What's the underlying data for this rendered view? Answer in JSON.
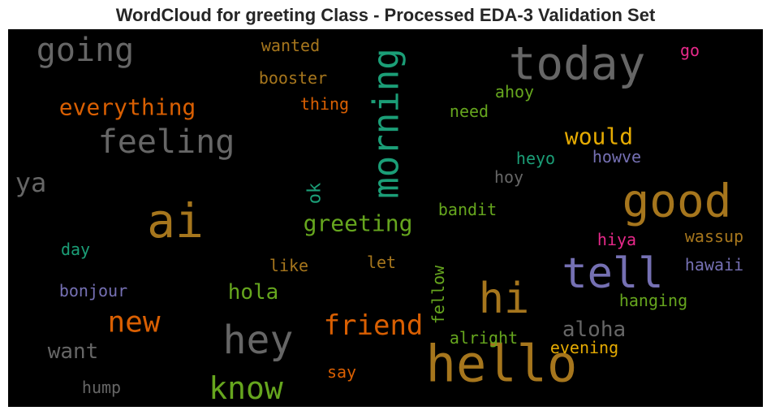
{
  "chart_data": {
    "type": "wordcloud",
    "title": "WordCloud for greeting Class - Processed EDA-3 Validation Set",
    "background": "#000000",
    "words": [
      {
        "text": "hello",
        "size": 62,
        "color": "#a6761d"
      },
      {
        "text": "ai",
        "size": 58,
        "color": "#a6761d"
      },
      {
        "text": "today",
        "size": 56,
        "color": "#666666"
      },
      {
        "text": "good",
        "size": 56,
        "color": "#a6761d"
      },
      {
        "text": "hi",
        "size": 52,
        "color": "#a6761d"
      },
      {
        "text": "tell",
        "size": 52,
        "color": "#7570b3"
      },
      {
        "text": "hey",
        "size": 48,
        "color": "#666666"
      },
      {
        "text": "morning",
        "size": 44,
        "color": "#1b9e77"
      },
      {
        "text": "going",
        "size": 40,
        "color": "#666666"
      },
      {
        "text": "feeling",
        "size": 40,
        "color": "#666666"
      },
      {
        "text": "know",
        "size": 38,
        "color": "#66a61e"
      },
      {
        "text": "new",
        "size": 36,
        "color": "#d95f02"
      },
      {
        "text": "friend",
        "size": 34,
        "color": "#d95f02"
      },
      {
        "text": "ya",
        "size": 32,
        "color": "#666666"
      },
      {
        "text": "everything",
        "size": 28,
        "color": "#d95f02"
      },
      {
        "text": "greeting",
        "size": 28,
        "color": "#66a61e"
      },
      {
        "text": "would",
        "size": 28,
        "color": "#e6ab02"
      },
      {
        "text": "aloha",
        "size": 26,
        "color": "#666666"
      },
      {
        "text": "want",
        "size": 26,
        "color": "#666666"
      },
      {
        "text": "hola",
        "size": 26,
        "color": "#66a61e"
      },
      {
        "text": "ok",
        "size": 22,
        "color": "#1b9e77"
      },
      {
        "text": "fellow",
        "size": 20,
        "color": "#66a61e"
      },
      {
        "text": "wanted",
        "size": 20,
        "color": "#a6761d"
      },
      {
        "text": "booster",
        "size": 20,
        "color": "#a6761d"
      },
      {
        "text": "thing",
        "size": 20,
        "color": "#d95f02"
      },
      {
        "text": "ahoy",
        "size": 20,
        "color": "#66a61e"
      },
      {
        "text": "need",
        "size": 20,
        "color": "#66a61e"
      },
      {
        "text": "heyo",
        "size": 20,
        "color": "#1b9e77"
      },
      {
        "text": "howve",
        "size": 20,
        "color": "#7570b3"
      },
      {
        "text": "hoy",
        "size": 20,
        "color": "#666666"
      },
      {
        "text": "bandit",
        "size": 20,
        "color": "#66a61e"
      },
      {
        "text": "hiya",
        "size": 20,
        "color": "#e7298a"
      },
      {
        "text": "wassup",
        "size": 20,
        "color": "#a6761d"
      },
      {
        "text": "hawaii",
        "size": 20,
        "color": "#7570b3"
      },
      {
        "text": "hanging",
        "size": 20,
        "color": "#66a61e"
      },
      {
        "text": "alright",
        "size": 20,
        "color": "#66a61e"
      },
      {
        "text": "evening",
        "size": 20,
        "color": "#e6ab02"
      },
      {
        "text": "say",
        "size": 20,
        "color": "#d95f02"
      },
      {
        "text": "like",
        "size": 20,
        "color": "#a6761d"
      },
      {
        "text": "let",
        "size": 20,
        "color": "#a6761d"
      },
      {
        "text": "day",
        "size": 20,
        "color": "#1b9e77"
      },
      {
        "text": "bonjour",
        "size": 20,
        "color": "#7570b3"
      },
      {
        "text": "hump",
        "size": 20,
        "color": "#666666"
      },
      {
        "text": "go",
        "size": 20,
        "color": "#e7298a"
      }
    ]
  }
}
